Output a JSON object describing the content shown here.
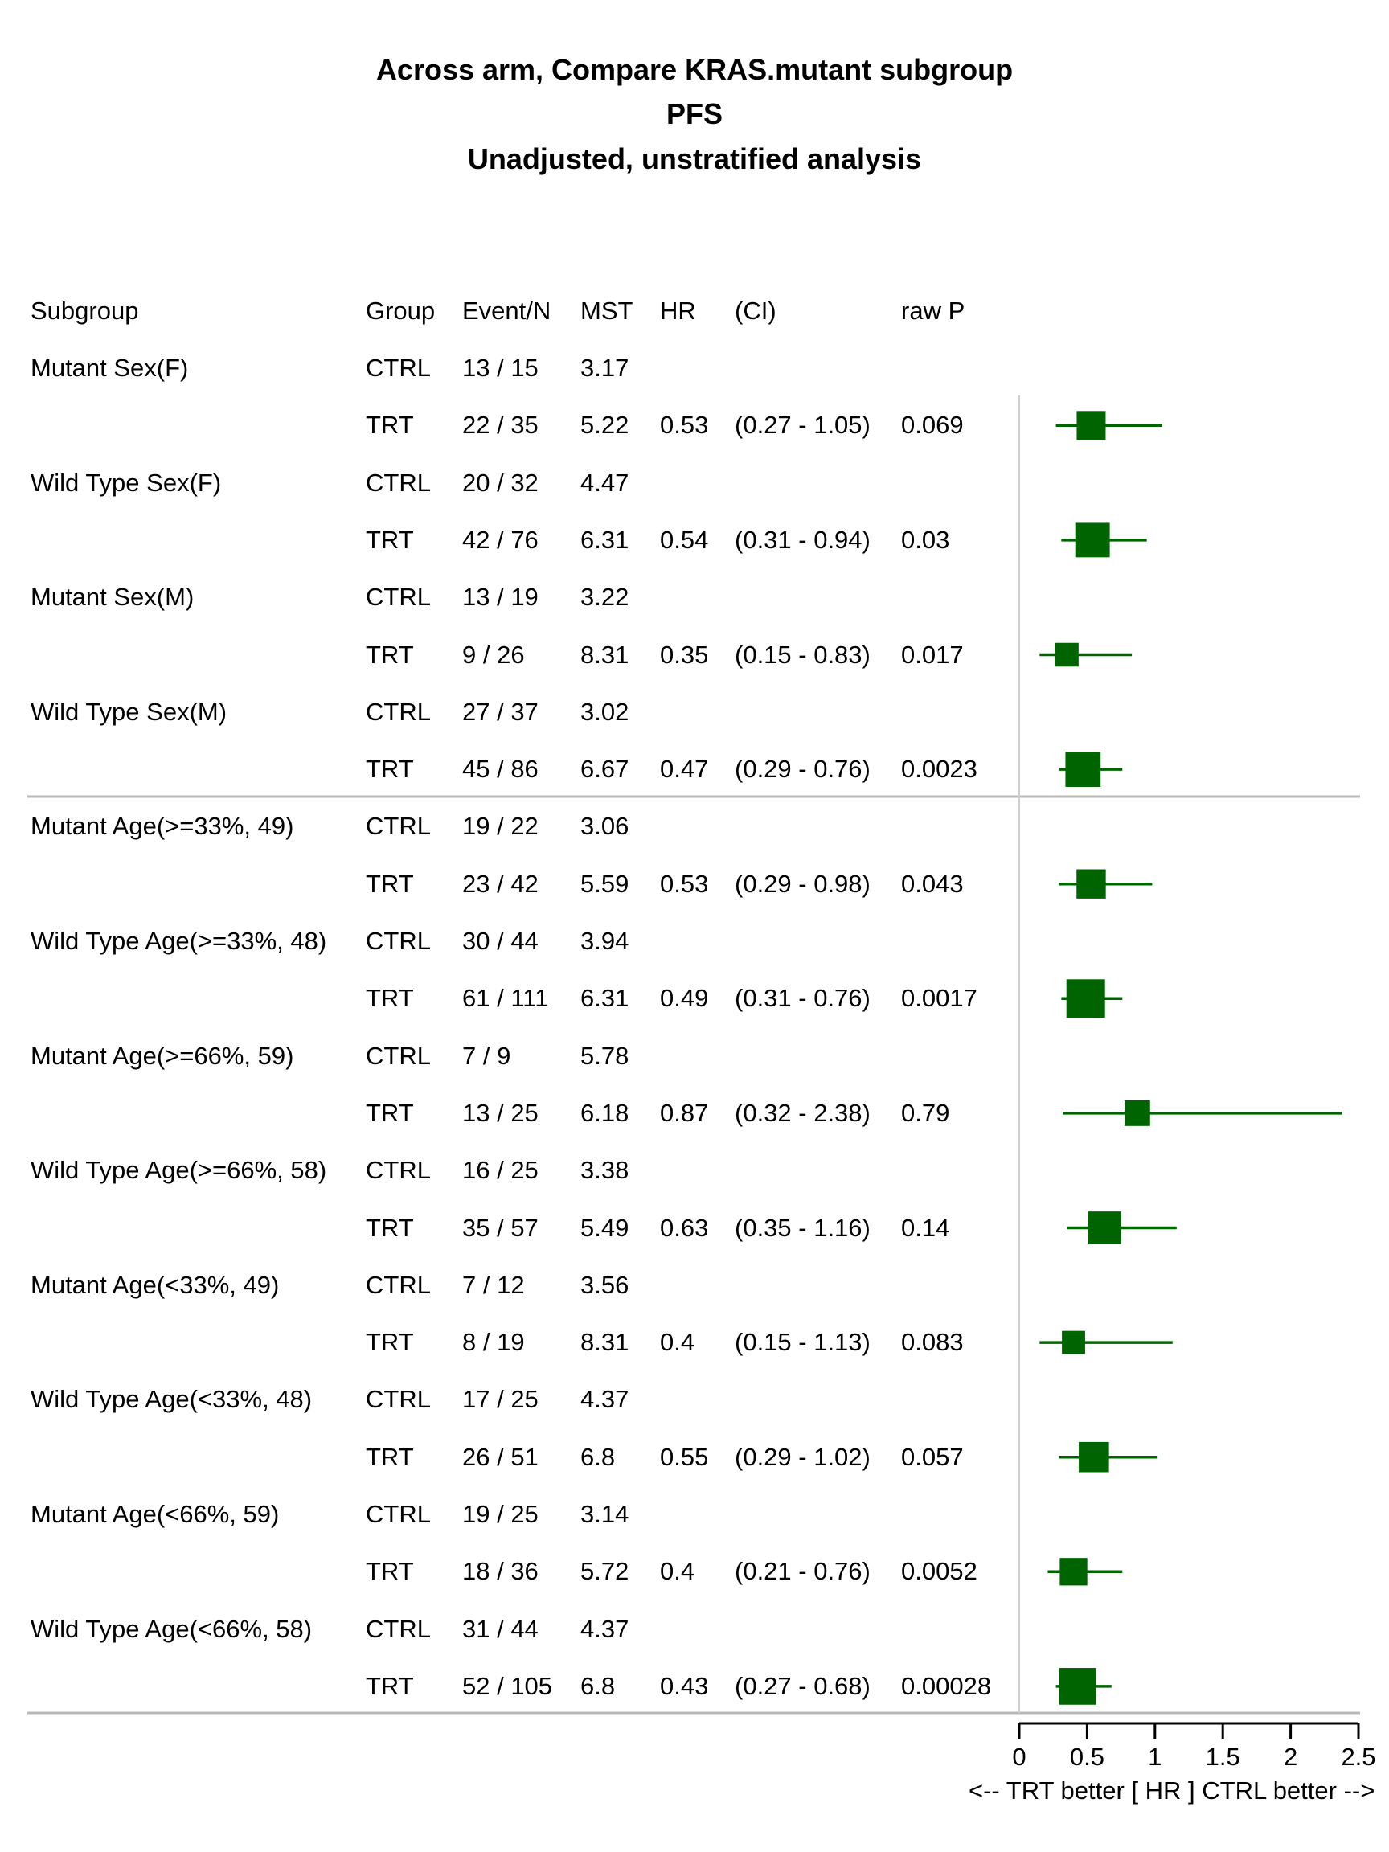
{
  "title_lines": [
    "Across arm, Compare KRAS.mutant subgroup",
    "PFS",
    "Unadjusted, unstratified analysis"
  ],
  "columns": [
    "Subgroup",
    "Group",
    "Event/N",
    "MST",
    "HR",
    "(CI)",
    "raw P"
  ],
  "rows": [
    {
      "subgroup": "Mutant Sex(F)",
      "group": "CTRL",
      "event_n": "13 / 15",
      "mst": "3.17",
      "hr": "",
      "ci": "",
      "p": ""
    },
    {
      "subgroup": "",
      "group": "TRT",
      "event_n": "22 / 35",
      "mst": "5.22",
      "hr": "0.53",
      "ci": "(0.27 - 1.05)",
      "p": "0.069"
    },
    {
      "subgroup": "Wild Type Sex(F)",
      "group": "CTRL",
      "event_n": "20 / 32",
      "mst": "4.47",
      "hr": "",
      "ci": "",
      "p": ""
    },
    {
      "subgroup": "",
      "group": "TRT",
      "event_n": "42 / 76",
      "mst": "6.31",
      "hr": "0.54",
      "ci": "(0.31 - 0.94)",
      "p": "0.03"
    },
    {
      "subgroup": "Mutant Sex(M)",
      "group": "CTRL",
      "event_n": "13 / 19",
      "mst": "3.22",
      "hr": "",
      "ci": "",
      "p": ""
    },
    {
      "subgroup": "",
      "group": "TRT",
      "event_n": "9 / 26",
      "mst": "8.31",
      "hr": "0.35",
      "ci": "(0.15 - 0.83)",
      "p": "0.017"
    },
    {
      "subgroup": "Wild Type Sex(M)",
      "group": "CTRL",
      "event_n": "27 / 37",
      "mst": "3.02",
      "hr": "",
      "ci": "",
      "p": ""
    },
    {
      "subgroup": "",
      "group": "TRT",
      "event_n": "45 / 86",
      "mst": "6.67",
      "hr": "0.47",
      "ci": "(0.29 - 0.76)",
      "p": "0.0023"
    },
    {
      "subgroup": "Mutant Age(>=33%, 49)",
      "group": "CTRL",
      "event_n": "19 / 22",
      "mst": "3.06",
      "hr": "",
      "ci": "",
      "p": ""
    },
    {
      "subgroup": "",
      "group": "TRT",
      "event_n": "23 / 42",
      "mst": "5.59",
      "hr": "0.53",
      "ci": "(0.29 - 0.98)",
      "p": "0.043"
    },
    {
      "subgroup": "Wild Type Age(>=33%, 48)",
      "group": "CTRL",
      "event_n": "30 / 44",
      "mst": "3.94",
      "hr": "",
      "ci": "",
      "p": ""
    },
    {
      "subgroup": "",
      "group": "TRT",
      "event_n": "61 / 111",
      "mst": "6.31",
      "hr": "0.49",
      "ci": "(0.31 - 0.76)",
      "p": "0.0017"
    },
    {
      "subgroup": "Mutant Age(>=66%, 59)",
      "group": "CTRL",
      "event_n": "7 / 9",
      "mst": "5.78",
      "hr": "",
      "ci": "",
      "p": ""
    },
    {
      "subgroup": "",
      "group": "TRT",
      "event_n": "13 / 25",
      "mst": "6.18",
      "hr": "0.87",
      "ci": "(0.32 - 2.38)",
      "p": "0.79"
    },
    {
      "subgroup": "Wild Type Age(>=66%, 58)",
      "group": "CTRL",
      "event_n": "16 / 25",
      "mst": "3.38",
      "hr": "",
      "ci": "",
      "p": ""
    },
    {
      "subgroup": "",
      "group": "TRT",
      "event_n": "35 / 57",
      "mst": "5.49",
      "hr": "0.63",
      "ci": "(0.35 - 1.16)",
      "p": "0.14"
    },
    {
      "subgroup": "Mutant Age(<33%, 49)",
      "group": "CTRL",
      "event_n": "7 / 12",
      "mst": "3.56",
      "hr": "",
      "ci": "",
      "p": ""
    },
    {
      "subgroup": "",
      "group": "TRT",
      "event_n": "8 / 19",
      "mst": "8.31",
      "hr": "0.4",
      "ci": "(0.15 - 1.13)",
      "p": "0.083"
    },
    {
      "subgroup": "Wild Type Age(<33%, 48)",
      "group": "CTRL",
      "event_n": "17 / 25",
      "mst": "4.37",
      "hr": "",
      "ci": "",
      "p": ""
    },
    {
      "subgroup": "",
      "group": "TRT",
      "event_n": "26 / 51",
      "mst": "6.8",
      "hr": "0.55",
      "ci": "(0.29 - 1.02)",
      "p": "0.057"
    },
    {
      "subgroup": "Mutant Age(<66%, 59)",
      "group": "CTRL",
      "event_n": "19 / 25",
      "mst": "3.14",
      "hr": "",
      "ci": "",
      "p": ""
    },
    {
      "subgroup": "",
      "group": "TRT",
      "event_n": "18 / 36",
      "mst": "5.72",
      "hr": "0.4",
      "ci": "(0.21 - 0.76)",
      "p": "0.0052"
    },
    {
      "subgroup": "Wild Type Age(<66%, 58)",
      "group": "CTRL",
      "event_n": "31 / 44",
      "mst": "4.37",
      "hr": "",
      "ci": "",
      "p": ""
    },
    {
      "subgroup": "",
      "group": "TRT",
      "event_n": "52 / 105",
      "mst": "6.8",
      "hr": "0.43",
      "ci": "(0.27 - 0.68)",
      "p": "0.00028"
    }
  ],
  "chart_data": {
    "type": "forest",
    "xlabel": "<--  TRT better [ HR ]  CTRL better -->",
    "x_ticks": [
      "0",
      "0.5",
      "1",
      "1.5",
      "2",
      "2.5"
    ],
    "xlim": [
      0,
      2.5
    ],
    "reference_line": 0,
    "marker_color": "#006400",
    "points": [
      {
        "row": 1,
        "hr": 0.53,
        "lo": 0.27,
        "hi": 1.05,
        "events": 22
      },
      {
        "row": 3,
        "hr": 0.54,
        "lo": 0.31,
        "hi": 0.94,
        "events": 42
      },
      {
        "row": 5,
        "hr": 0.35,
        "lo": 0.15,
        "hi": 0.83,
        "events": 9
      },
      {
        "row": 7,
        "hr": 0.47,
        "lo": 0.29,
        "hi": 0.76,
        "events": 45
      },
      {
        "row": 9,
        "hr": 0.53,
        "lo": 0.29,
        "hi": 0.98,
        "events": 23
      },
      {
        "row": 11,
        "hr": 0.49,
        "lo": 0.31,
        "hi": 0.76,
        "events": 61
      },
      {
        "row": 13,
        "hr": 0.87,
        "lo": 0.32,
        "hi": 2.38,
        "events": 13
      },
      {
        "row": 15,
        "hr": 0.63,
        "lo": 0.35,
        "hi": 1.16,
        "events": 35
      },
      {
        "row": 17,
        "hr": 0.4,
        "lo": 0.15,
        "hi": 1.13,
        "events": 8
      },
      {
        "row": 19,
        "hr": 0.55,
        "lo": 0.29,
        "hi": 1.02,
        "events": 26
      },
      {
        "row": 21,
        "hr": 0.4,
        "lo": 0.21,
        "hi": 0.76,
        "events": 18
      },
      {
        "row": 23,
        "hr": 0.43,
        "lo": 0.27,
        "hi": 0.68,
        "events": 52
      }
    ]
  }
}
